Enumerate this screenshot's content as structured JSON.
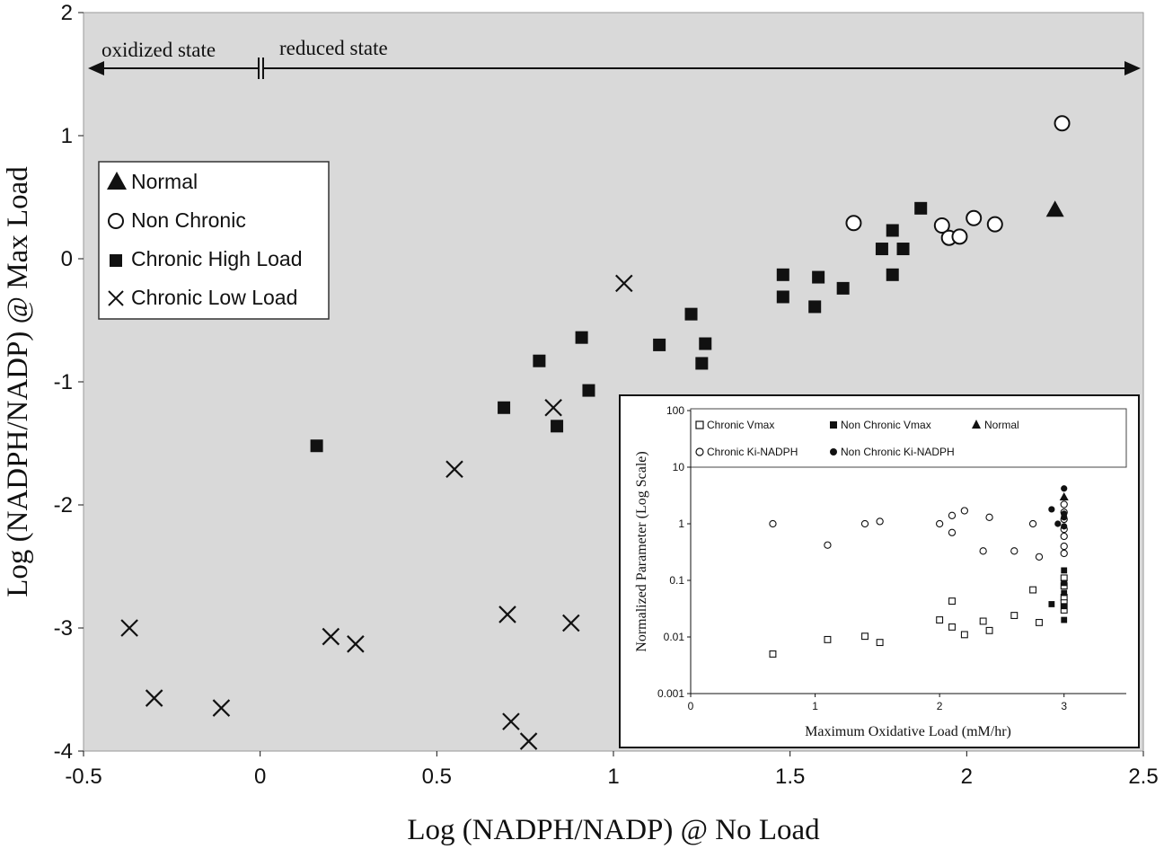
{
  "chart_data": [
    {
      "type": "scatter",
      "xlabel": "Log (NADPH/NADP) @ No Load",
      "ylabel": "Log (NADPH/NADP) @ Max Load",
      "xlim": [
        -0.5,
        2.5
      ],
      "ylim": [
        -4,
        2
      ],
      "xticks": [
        "-0.5",
        "0",
        "0.5",
        "1",
        "1.5",
        "2",
        "2.5"
      ],
      "yticks": [
        "2",
        "1",
        "0",
        "-1",
        "-2",
        "-3",
        "-4"
      ],
      "background": "#d9d9d9",
      "legend_position": "upper-left",
      "annotations": {
        "oxidized": "oxidized state",
        "reduced": "reduced state"
      },
      "series": [
        {
          "name": "Normal",
          "marker": "triangle-filled",
          "points": [
            [
              2.25,
              0.4
            ]
          ]
        },
        {
          "name": "Non Chronic",
          "marker": "circle-open",
          "points": [
            [
              1.68,
              0.29
            ],
            [
              1.93,
              0.27
            ],
            [
              1.95,
              0.17
            ],
            [
              1.98,
              0.18
            ],
            [
              2.02,
              0.33
            ],
            [
              2.08,
              0.28
            ],
            [
              2.27,
              1.1
            ]
          ]
        },
        {
          "name": "Chronic High Load",
          "marker": "square-filled",
          "points": [
            [
              0.16,
              -1.52
            ],
            [
              0.69,
              -1.21
            ],
            [
              0.79,
              -0.83
            ],
            [
              0.84,
              -1.36
            ],
            [
              0.91,
              -0.64
            ],
            [
              0.93,
              -1.07
            ],
            [
              1.13,
              -0.7
            ],
            [
              1.22,
              -0.45
            ],
            [
              1.25,
              -0.85
            ],
            [
              1.26,
              -0.69
            ],
            [
              1.48,
              -0.13
            ],
            [
              1.48,
              -0.31
            ],
            [
              1.57,
              -0.39
            ],
            [
              1.58,
              -0.15
            ],
            [
              1.65,
              -0.24
            ],
            [
              1.76,
              0.08
            ],
            [
              1.79,
              0.23
            ],
            [
              1.82,
              0.08
            ],
            [
              1.79,
              -0.13
            ],
            [
              1.87,
              0.41
            ]
          ]
        },
        {
          "name": "Chronic Low Load",
          "marker": "x",
          "points": [
            [
              -0.37,
              -3.0
            ],
            [
              -0.3,
              -3.57
            ],
            [
              -0.11,
              -3.65
            ],
            [
              0.2,
              -3.07
            ],
            [
              0.27,
              -3.13
            ],
            [
              0.55,
              -1.71
            ],
            [
              0.7,
              -2.89
            ],
            [
              0.71,
              -3.76
            ],
            [
              0.76,
              -3.92
            ],
            [
              0.83,
              -1.21
            ],
            [
              0.88,
              -2.96
            ],
            [
              1.03,
              -0.2
            ]
          ]
        }
      ]
    },
    {
      "type": "scatter",
      "xlabel": "Maximum Oxidative Load (mM/hr)",
      "ylabel": "Normalized Parameter (Log Scale)",
      "xlim": [
        0,
        3.5
      ],
      "ylim": [
        0.001,
        100
      ],
      "yscale": "log",
      "xticks": [
        "0",
        "1",
        "2",
        "3"
      ],
      "yticks": [
        "0.001",
        "0.01",
        "0.1",
        "1",
        "10",
        "100"
      ],
      "legend_position": "top",
      "series": [
        {
          "name": "Chronic Vmax",
          "marker": "square-open",
          "points": [
            [
              0.66,
              0.005
            ],
            [
              1.1,
              0.009
            ],
            [
              1.4,
              0.0103
            ],
            [
              1.52,
              0.008
            ],
            [
              2.0,
              0.02
            ],
            [
              2.1,
              0.043
            ],
            [
              2.1,
              0.015
            ],
            [
              2.2,
              0.011
            ],
            [
              2.35,
              0.019
            ],
            [
              2.4,
              0.013
            ],
            [
              2.6,
              0.024
            ],
            [
              2.75,
              0.068
            ],
            [
              2.8,
              0.018
            ],
            [
              3.0,
              0.03
            ],
            [
              3.0,
              0.05
            ],
            [
              3.0,
              0.08
            ],
            [
              3.0,
              0.11
            ],
            [
              3.0,
              0.04
            ]
          ]
        },
        {
          "name": "Non Chronic Vmax",
          "marker": "square-filled",
          "points": [
            [
              2.9,
              0.038
            ],
            [
              3.0,
              0.02
            ],
            [
              3.0,
              0.035
            ],
            [
              3.0,
              0.06
            ],
            [
              3.0,
              0.09
            ],
            [
              3.0,
              0.15
            ]
          ]
        },
        {
          "name": "Normal",
          "marker": "triangle-filled",
          "points": [
            [
              3.0,
              3.0
            ]
          ]
        },
        {
          "name": "Chronic Ki-NADPH",
          "marker": "circle-open",
          "points": [
            [
              0.66,
              1.0
            ],
            [
              1.1,
              0.42
            ],
            [
              1.4,
              1.0
            ],
            [
              1.52,
              1.1
            ],
            [
              2.0,
              1.0
            ],
            [
              2.1,
              1.4
            ],
            [
              2.1,
              0.7
            ],
            [
              2.2,
              1.7
            ],
            [
              2.35,
              0.33
            ],
            [
              2.4,
              1.3
            ],
            [
              2.6,
              0.33
            ],
            [
              2.75,
              1.0
            ],
            [
              2.8,
              0.26
            ],
            [
              3.0,
              0.4
            ],
            [
              3.0,
              0.6
            ],
            [
              3.0,
              0.8
            ],
            [
              3.0,
              1.2
            ],
            [
              3.0,
              1.6
            ],
            [
              3.0,
              2.2
            ],
            [
              3.0,
              0.3
            ]
          ]
        },
        {
          "name": "Non Chronic Ki-NADPH",
          "marker": "circle-filled",
          "points": [
            [
              2.9,
              1.8
            ],
            [
              2.95,
              1.0
            ],
            [
              3.0,
              0.9
            ],
            [
              3.0,
              1.3
            ],
            [
              3.0,
              1.5
            ],
            [
              3.0,
              4.2
            ]
          ]
        }
      ]
    }
  ]
}
